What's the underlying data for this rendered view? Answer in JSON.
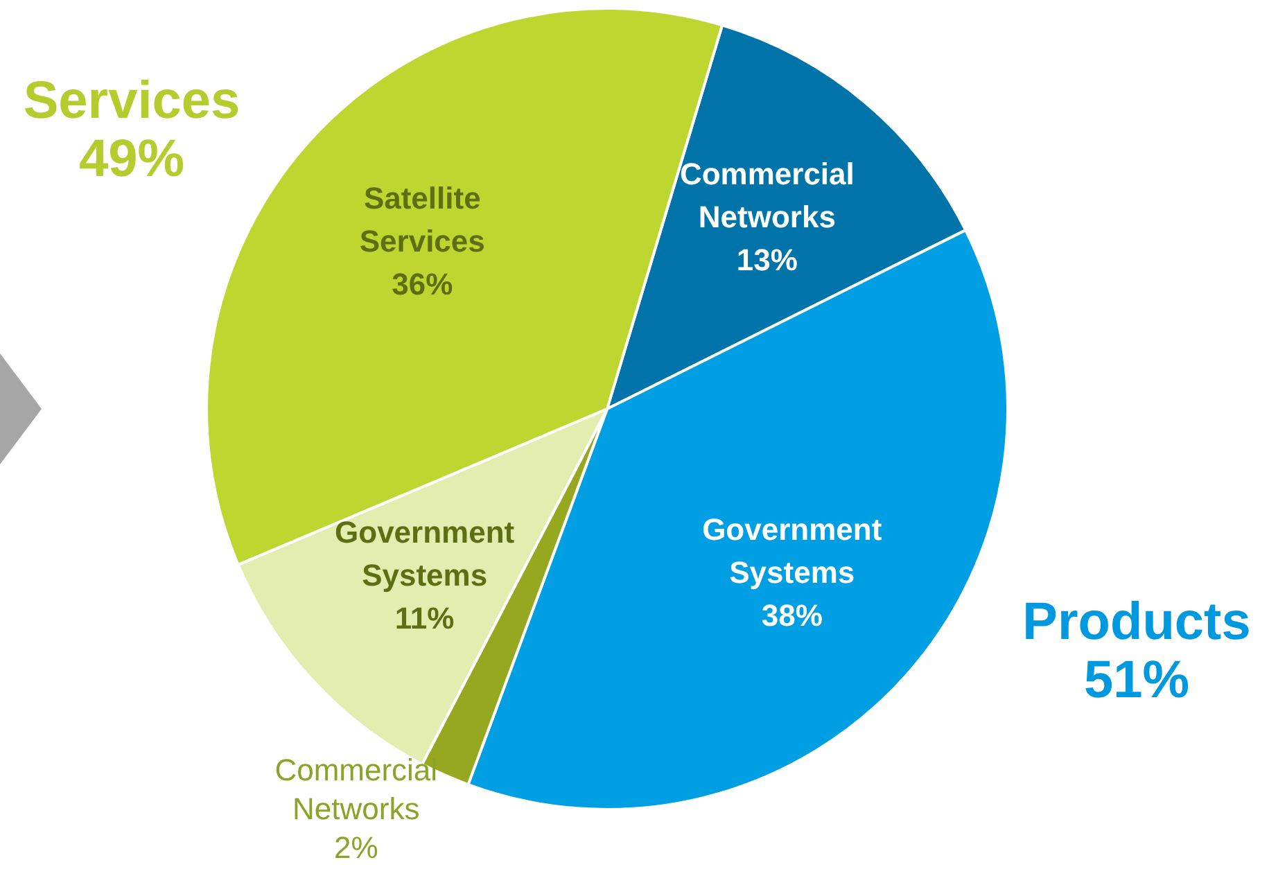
{
  "chart_data": {
    "type": "pie",
    "categories": [
      "Commercial Networks",
      "Government Systems",
      "Commercial Networks",
      "Government Systems",
      "Satellite Services"
    ],
    "values": [
      13,
      38,
      2,
      11,
      36
    ],
    "colors": [
      "#0073a8",
      "#009fe3",
      "#95a820",
      "#e3edb0",
      "#bed630"
    ],
    "value_labels": [
      "13%",
      "38%",
      "2%",
      "11%",
      "36%"
    ],
    "annotations": [
      "Services\n49%",
      "Products\n51%"
    ],
    "legend": false
  }
}
